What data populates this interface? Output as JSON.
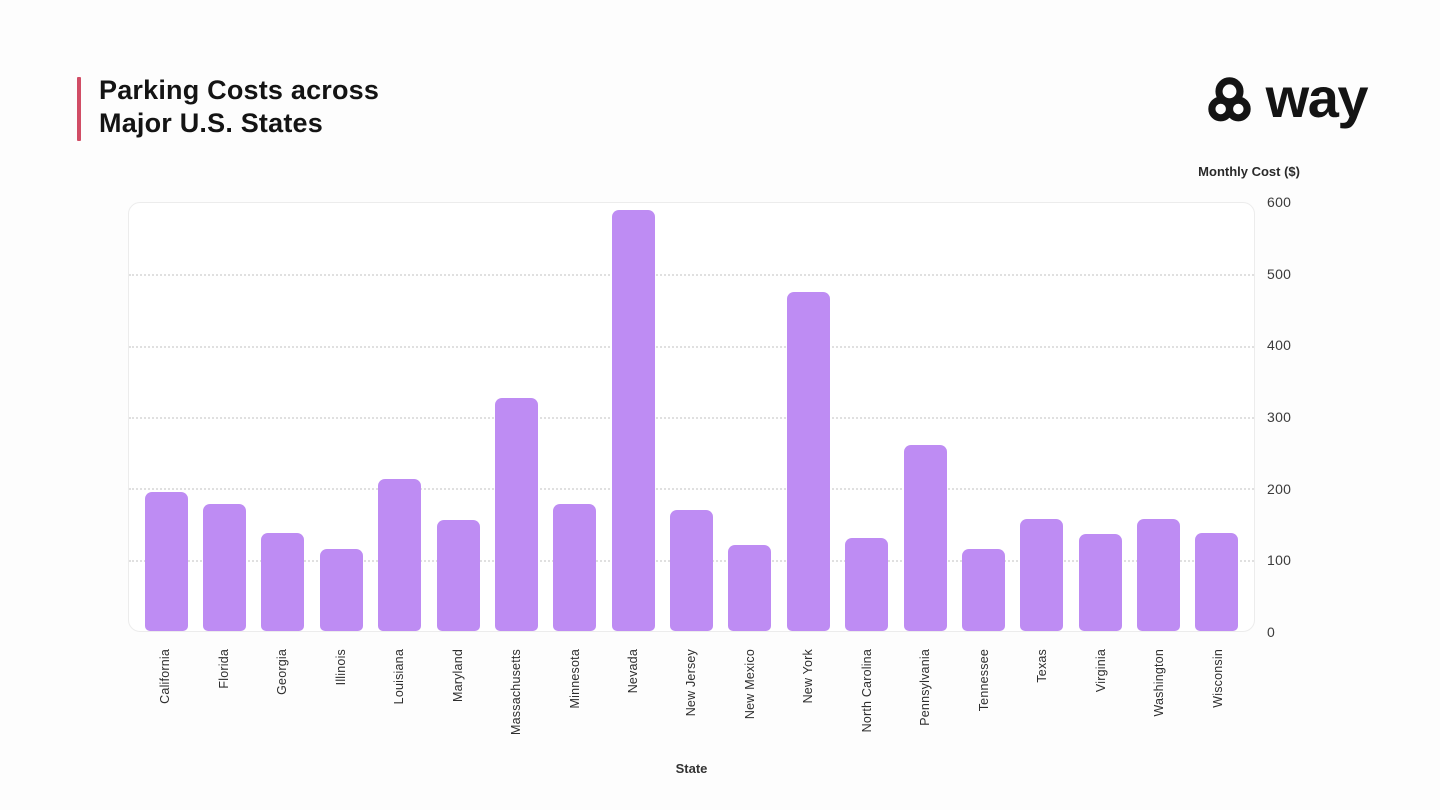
{
  "header": {
    "title_line1": "Parking Costs across",
    "title_line2": "Major U.S. States",
    "accent_color": "#d14d66",
    "brand_name": "way",
    "brand_icon": "way-trefoil-icon",
    "brand_color": "#141414"
  },
  "chart_data": {
    "type": "bar",
    "title": "Parking Costs across Major U.S. States",
    "xlabel": "State",
    "ylabel": "Monthly Cost ($)",
    "ylim": [
      0,
      600
    ],
    "yticks": [
      0,
      100,
      200,
      300,
      400,
      500,
      600
    ],
    "grid": "horizontal dotted",
    "legend_position": "none",
    "bar_color": "#be8cf3",
    "categories": [
      "California",
      "Florida",
      "Georgia",
      "Illinois",
      "Louisiana",
      "Maryland",
      "Massachusetts",
      "Minnesota",
      "Nevada",
      "New Jersey",
      "New Mexico",
      "New York",
      "North Carolina",
      "Pennsylvania",
      "Tennessee",
      "Texas",
      "Virginia",
      "Washington",
      "Wisconsin"
    ],
    "values": [
      195,
      178,
      138,
      115,
      213,
      156,
      326,
      178,
      590,
      169,
      120,
      475,
      131,
      261,
      115,
      157,
      136,
      157,
      138
    ]
  }
}
